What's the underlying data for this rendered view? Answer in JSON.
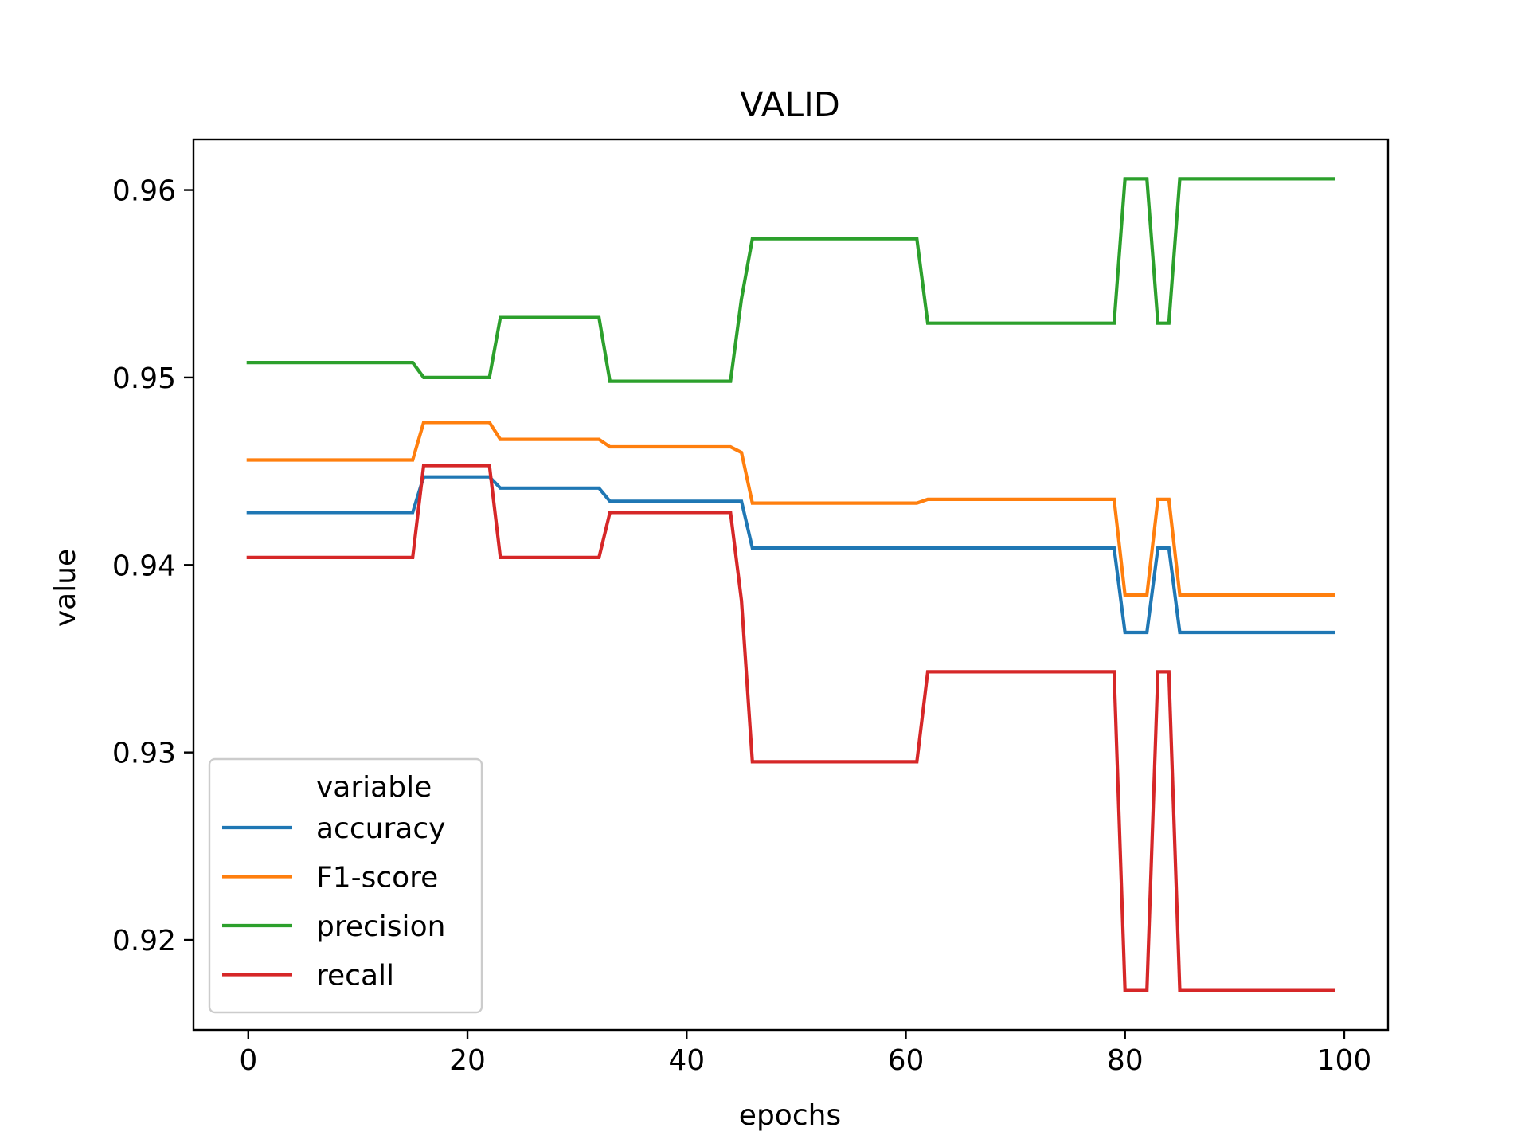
{
  "chart_data": {
    "type": "line",
    "title": "VALID",
    "xlabel": "epochs",
    "ylabel": "value",
    "xlim": [
      -5,
      104
    ],
    "ylim": [
      0.9152,
      0.9627
    ],
    "xticks": [
      0,
      20,
      40,
      60,
      80,
      100
    ],
    "yticks": [
      0.92,
      0.93,
      0.94,
      0.95,
      0.96
    ],
    "ytick_labels": [
      "0.92",
      "0.93",
      "0.94",
      "0.95",
      "0.96"
    ],
    "grid": false,
    "legend": {
      "title": "variable",
      "placement": "lower-left"
    },
    "series": [
      {
        "name": "accuracy",
        "color": "#1f77b4",
        "points": [
          [
            0,
            0.9428
          ],
          [
            15,
            0.9428
          ],
          [
            16,
            0.9447
          ],
          [
            22,
            0.9447
          ],
          [
            23,
            0.9441
          ],
          [
            32,
            0.9441
          ],
          [
            33,
            0.9434
          ],
          [
            45,
            0.9434
          ],
          [
            46,
            0.9409
          ],
          [
            79,
            0.9409
          ],
          [
            80,
            0.9364
          ],
          [
            82,
            0.9364
          ],
          [
            83,
            0.9409
          ],
          [
            84,
            0.9409
          ],
          [
            85,
            0.9364
          ],
          [
            99,
            0.9364
          ]
        ]
      },
      {
        "name": "F1-score",
        "color": "#ff7f0e",
        "points": [
          [
            0,
            0.9456
          ],
          [
            15,
            0.9456
          ],
          [
            16,
            0.9476
          ],
          [
            22,
            0.9476
          ],
          [
            23,
            0.9467
          ],
          [
            32,
            0.9467
          ],
          [
            33,
            0.9463
          ],
          [
            44,
            0.9463
          ],
          [
            45,
            0.946
          ],
          [
            46,
            0.9433
          ],
          [
            61,
            0.9433
          ],
          [
            62,
            0.9435
          ],
          [
            79,
            0.9435
          ],
          [
            80,
            0.9384
          ],
          [
            82,
            0.9384
          ],
          [
            83,
            0.9435
          ],
          [
            84,
            0.9435
          ],
          [
            85,
            0.9384
          ],
          [
            99,
            0.9384
          ]
        ]
      },
      {
        "name": "precision",
        "color": "#2ca02c",
        "points": [
          [
            0,
            0.9508
          ],
          [
            15,
            0.9508
          ],
          [
            16,
            0.95
          ],
          [
            22,
            0.95
          ],
          [
            23,
            0.9532
          ],
          [
            32,
            0.9532
          ],
          [
            33,
            0.9498
          ],
          [
            44,
            0.9498
          ],
          [
            45,
            0.9542
          ],
          [
            46,
            0.9574
          ],
          [
            61,
            0.9574
          ],
          [
            62,
            0.9529
          ],
          [
            79,
            0.9529
          ],
          [
            80,
            0.9606
          ],
          [
            82,
            0.9606
          ],
          [
            83,
            0.9529
          ],
          [
            84,
            0.9529
          ],
          [
            85,
            0.9606
          ],
          [
            99,
            0.9606
          ]
        ]
      },
      {
        "name": "recall",
        "color": "#d62728",
        "points": [
          [
            0,
            0.9404
          ],
          [
            15,
            0.9404
          ],
          [
            16,
            0.9453
          ],
          [
            22,
            0.9453
          ],
          [
            23,
            0.9404
          ],
          [
            32,
            0.9404
          ],
          [
            33,
            0.9428
          ],
          [
            44,
            0.9428
          ],
          [
            45,
            0.9381
          ],
          [
            46,
            0.9295
          ],
          [
            61,
            0.9295
          ],
          [
            62,
            0.9343
          ],
          [
            79,
            0.9343
          ],
          [
            80,
            0.9173
          ],
          [
            82,
            0.9173
          ],
          [
            83,
            0.9343
          ],
          [
            84,
            0.9343
          ],
          [
            85,
            0.9173
          ],
          [
            99,
            0.9173
          ]
        ]
      }
    ]
  }
}
